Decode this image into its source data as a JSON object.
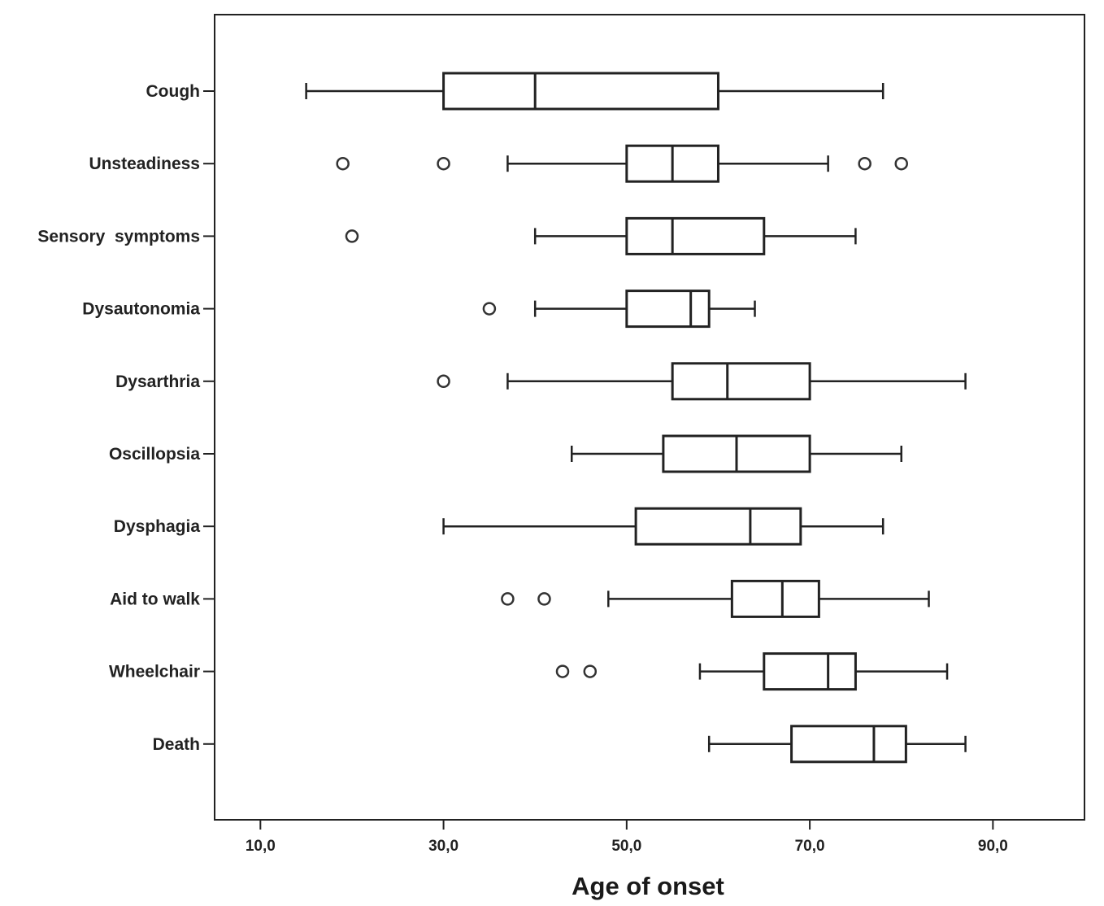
{
  "chart_data": {
    "type": "boxplot",
    "orientation": "horizontal",
    "xlabel": "Age of onset",
    "xlim": [
      5,
      100
    ],
    "xticks": [
      10,
      30,
      50,
      70,
      90
    ],
    "xtick_labels": [
      "10,0",
      "30,0",
      "50,0",
      "70,0",
      "90,0"
    ],
    "grid": false,
    "categories": [
      "Cough",
      "Unsteadiness",
      "Sensory  symptoms",
      "Dysautonomia",
      "Dysarthria",
      "Oscillopsia",
      "Dysphagia",
      "Aid to walk",
      "Wheelchair",
      "Death"
    ],
    "boxes": [
      {
        "category": "Cough",
        "whisker_low": 15,
        "q1": 30,
        "median": 40,
        "q3": 60,
        "whisker_high": 78,
        "outliers": []
      },
      {
        "category": "Unsteadiness",
        "whisker_low": 37,
        "q1": 50,
        "median": 55,
        "q3": 60,
        "whisker_high": 72,
        "outliers": [
          19,
          30,
          76,
          80
        ]
      },
      {
        "category": "Sensory  symptoms",
        "whisker_low": 40,
        "q1": 50,
        "median": 55,
        "q3": 65,
        "whisker_high": 75,
        "outliers": [
          20
        ]
      },
      {
        "category": "Dysautonomia",
        "whisker_low": 40,
        "q1": 50,
        "median": 57,
        "q3": 59,
        "whisker_high": 64,
        "outliers": [
          35
        ]
      },
      {
        "category": "Dysarthria",
        "whisker_low": 37,
        "q1": 55,
        "median": 61,
        "q3": 70,
        "whisker_high": 87,
        "outliers": [
          30
        ]
      },
      {
        "category": "Oscillopsia",
        "whisker_low": 44,
        "q1": 54,
        "median": 62,
        "q3": 70,
        "whisker_high": 80,
        "outliers": []
      },
      {
        "category": "Dysphagia",
        "whisker_low": 30,
        "q1": 51,
        "median": 63.5,
        "q3": 69,
        "whisker_high": 78,
        "outliers": []
      },
      {
        "category": "Aid to walk",
        "whisker_low": 48,
        "q1": 61.5,
        "median": 67,
        "q3": 71,
        "whisker_high": 83,
        "outliers": [
          37,
          41
        ]
      },
      {
        "category": "Wheelchair",
        "whisker_low": 58,
        "q1": 65,
        "median": 72,
        "q3": 75,
        "whisker_high": 85,
        "outliers": [
          43,
          46
        ]
      },
      {
        "category": "Death",
        "whisker_low": 59,
        "q1": 68,
        "median": 77,
        "q3": 80.5,
        "whisker_high": 87,
        "outliers": []
      }
    ]
  }
}
